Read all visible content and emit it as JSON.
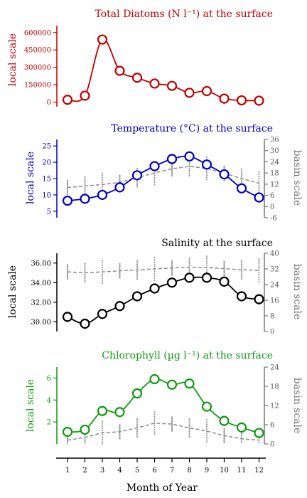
{
  "chart_data": [
    {
      "type": "line",
      "title": "Total Diatoms (N l⁻¹) at the surface",
      "ylabel": "local scale",
      "color": "#c00000",
      "ylim": [
        -40000,
        660000
      ],
      "yticks": [
        0,
        150000,
        300000,
        450000,
        600000
      ],
      "ytick_labels": [
        "0",
        "150000",
        "300000",
        "450000",
        "600000"
      ],
      "x": [
        1,
        2,
        3,
        4,
        5,
        6,
        7,
        8,
        9,
        10,
        11,
        12
      ],
      "series": [
        {
          "values": [
            20000,
            55000,
            540000,
            270000,
            210000,
            160000,
            140000,
            80000,
            95000,
            30000,
            15000,
            12000
          ]
        }
      ]
    },
    {
      "type": "line",
      "title": "Temperature (°C) at the surface",
      "ylabel": "local scale",
      "y2label": "basin scale",
      "color": "#0000c0",
      "ylim": [
        3,
        27
      ],
      "yticks": [
        5,
        10,
        15,
        20,
        25
      ],
      "ytick_labels": [
        "5",
        "10",
        "15",
        "20",
        "25"
      ],
      "y2lim": [
        -6,
        36
      ],
      "y2ticks": [
        -6,
        0,
        6,
        12,
        18,
        24,
        30,
        36
      ],
      "y2tick_labels": [
        "-6",
        "0",
        "6",
        "12",
        "18",
        "24",
        "30",
        "36"
      ],
      "x": [
        1,
        2,
        3,
        4,
        5,
        6,
        7,
        8,
        9,
        10,
        11,
        12
      ],
      "series": [
        {
          "values": [
            8.2,
            8.8,
            10.0,
            12.3,
            16.0,
            18.8,
            21.0,
            21.8,
            19.3,
            16.3,
            12.0,
            9.2
          ]
        }
      ],
      "basin_series": [
        {
          "values": [
            10.2,
            11.0,
            11.8,
            13.0,
            15.5,
            18.0,
            20.3,
            21.5,
            20.5,
            17.8,
            15.0,
            12.5
          ]
        }
      ]
    },
    {
      "type": "line",
      "title": "Salinity at the surface",
      "ylabel": "local scale",
      "y2label": "basin scale",
      "color": "#000000",
      "ylim": [
        29.0,
        37.0
      ],
      "yticks": [
        30.0,
        32.0,
        34.0,
        36.0
      ],
      "ytick_labels": [
        "30.00",
        "32.00",
        "34.00",
        "36.00"
      ],
      "y2lim": [
        0,
        40
      ],
      "y2ticks": [
        0,
        8,
        16,
        24,
        32,
        40
      ],
      "y2tick_labels": [
        "0",
        "8",
        "16",
        "24",
        "32",
        "40"
      ],
      "x": [
        1,
        2,
        3,
        4,
        5,
        6,
        7,
        8,
        9,
        10,
        11,
        12
      ],
      "series": [
        {
          "values": [
            30.5,
            29.8,
            30.8,
            31.6,
            32.6,
            33.4,
            34.0,
            34.5,
            34.5,
            34.1,
            32.6,
            32.3
          ]
        }
      ],
      "basin_series": [
        {
          "values": [
            30.5,
            30.0,
            30.5,
            31.0,
            31.5,
            32.0,
            32.5,
            32.8,
            32.7,
            32.2,
            31.5,
            31.3
          ]
        }
      ]
    },
    {
      "type": "line",
      "title": "Chlorophyll (µg l⁻¹) at the surface",
      "ylabel": "local scale",
      "y2label": "basin scale",
      "xlabel": "Month of Year",
      "color": "#119911",
      "ylim": [
        0,
        7
      ],
      "yticks": [
        2,
        4,
        6
      ],
      "ytick_labels": [
        "2",
        "4",
        "6"
      ],
      "y2lim": [
        0,
        24
      ],
      "y2ticks": [
        0,
        6,
        12,
        18,
        24
      ],
      "y2tick_labels": [
        "0",
        "6",
        "12",
        "18",
        "24"
      ],
      "x": [
        1,
        2,
        3,
        4,
        5,
        6,
        7,
        8,
        9,
        10,
        11,
        12
      ],
      "xtick_labels": [
        "1",
        "2",
        "3",
        "4",
        "5",
        "6",
        "7",
        "8",
        "9",
        "10",
        "11",
        "12"
      ],
      "series": [
        {
          "values": [
            1.1,
            1.3,
            3.0,
            2.9,
            4.6,
            5.9,
            5.4,
            5.5,
            3.4,
            2.1,
            1.5,
            1.0
          ]
        }
      ],
      "basin_series": [
        {
          "values": [
            1.2,
            2.0,
            3.5,
            3.8,
            5.0,
            6.5,
            6.2,
            5.0,
            4.0,
            2.6,
            1.6,
            1.2
          ]
        }
      ]
    }
  ]
}
